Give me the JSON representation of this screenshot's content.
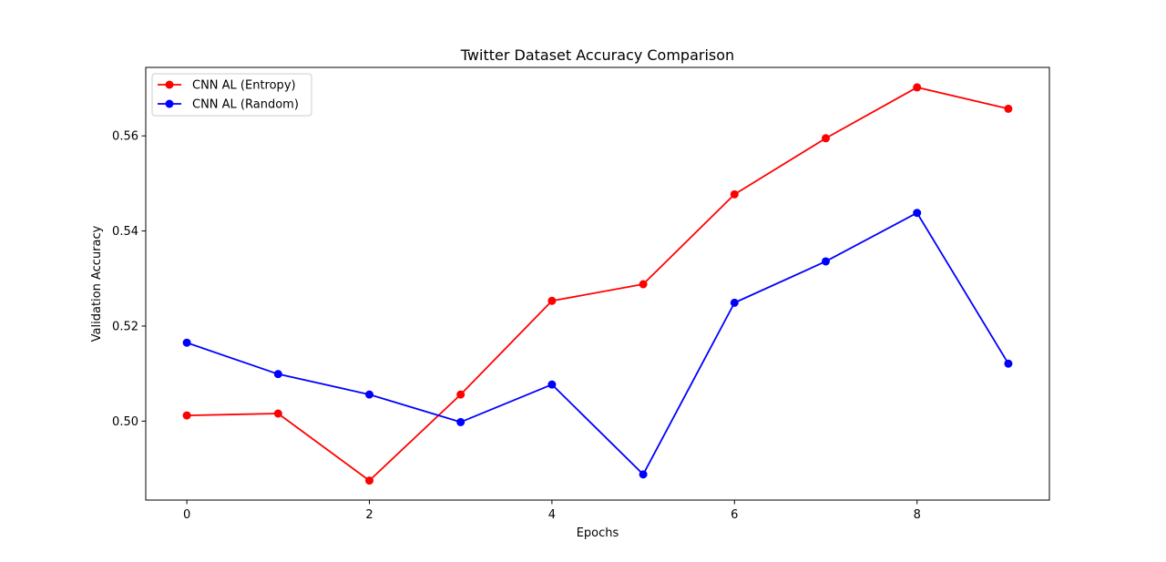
{
  "chart_data": {
    "type": "line",
    "title": "Twitter Dataset Accuracy Comparison",
    "xlabel": "Epochs",
    "ylabel": "Validation Accuracy",
    "x": [
      0,
      1,
      2,
      3,
      4,
      5,
      6,
      7,
      8,
      9
    ],
    "xticks": [
      0,
      2,
      4,
      6,
      8
    ],
    "xtick_labels": [
      "0",
      "2",
      "4",
      "6",
      "8"
    ],
    "yticks": [
      0.5,
      0.52,
      0.54,
      0.56
    ],
    "ytick_labels": [
      "0.50",
      "0.52",
      "0.54",
      "0.56"
    ],
    "xlim": [
      -0.45,
      9.45
    ],
    "ylim": [
      0.4834,
      0.5744
    ],
    "grid": false,
    "legend_position": "top-left",
    "series": [
      {
        "name": "CNN AL (Entropy)",
        "color": "#ff0000",
        "marker": "circle",
        "values": [
          0.5012,
          0.5016,
          0.4875,
          0.5056,
          0.5253,
          0.5288,
          0.5477,
          0.5595,
          0.5702,
          0.5657
        ]
      },
      {
        "name": "CNN AL (Random)",
        "color": "#0000ff",
        "marker": "circle",
        "values": [
          0.5165,
          0.5099,
          0.5056,
          0.4998,
          0.5077,
          0.4888,
          0.5249,
          0.5336,
          0.5438,
          0.5121
        ]
      }
    ]
  }
}
